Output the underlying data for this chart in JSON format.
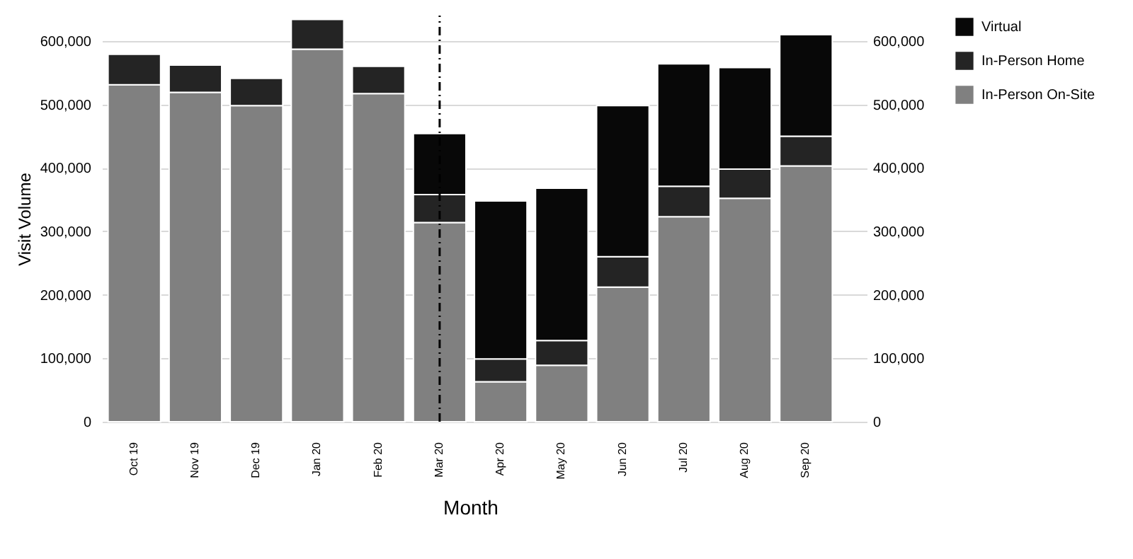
{
  "chart_data": {
    "type": "bar",
    "stacked": true,
    "xlabel": "Month",
    "ylabel": "Visit Volume",
    "categories": [
      "Oct 19",
      "Nov 19",
      "Dec 19",
      "Jan 20",
      "Feb 20",
      "Mar 20",
      "Apr 20",
      "May 20",
      "Jun 20",
      "Jul 20",
      "Aug 20",
      "Sep 20"
    ],
    "series": [
      {
        "name": "In-Person On-Site",
        "color": "#808080",
        "values": [
          531000,
          519000,
          498000,
          587000,
          517000,
          314000,
          63000,
          89000,
          212000,
          323000,
          352000,
          403000
        ]
      },
      {
        "name": "In-Person Home",
        "color": "#242424",
        "values": [
          48000,
          43000,
          43000,
          47000,
          43000,
          44000,
          36000,
          39000,
          48000,
          48000,
          46000,
          47000
        ]
      },
      {
        "name": "Virtual",
        "color": "#080808",
        "values": [
          null,
          null,
          null,
          null,
          null,
          96000,
          249000,
          240000,
          238000,
          193000,
          160000,
          160000
        ]
      }
    ],
    "ylim": [
      0,
      640000
    ],
    "yticks": [
      0,
      {
        "value": 100000,
        "label": "100,000"
      },
      {
        "value": 200000,
        "label": "200,000"
      },
      {
        "value": 300000,
        "label": "300,000"
      },
      {
        "value": 400000,
        "label": "400,000"
      },
      {
        "value": 500000,
        "label": "500,000"
      },
      {
        "value": 600000,
        "label": "600,000"
      }
    ],
    "y2lim": [
      0,
      640000
    ],
    "y2ticks": [
      0,
      {
        "value": 100000,
        "label": "100,000"
      },
      {
        "value": 200000,
        "label": "200,000"
      },
      {
        "value": 300000,
        "label": "300,000"
      },
      {
        "value": 400000,
        "label": "400,000"
      },
      {
        "value": 500000,
        "label": "500,000"
      },
      {
        "value": 600000,
        "label": "600,000"
      }
    ],
    "ref_lines": [
      {
        "axis": "x",
        "value": "Mar 20",
        "color": "#000000",
        "line_style": "dashdot"
      }
    ],
    "grid": "y",
    "legend": "right"
  }
}
